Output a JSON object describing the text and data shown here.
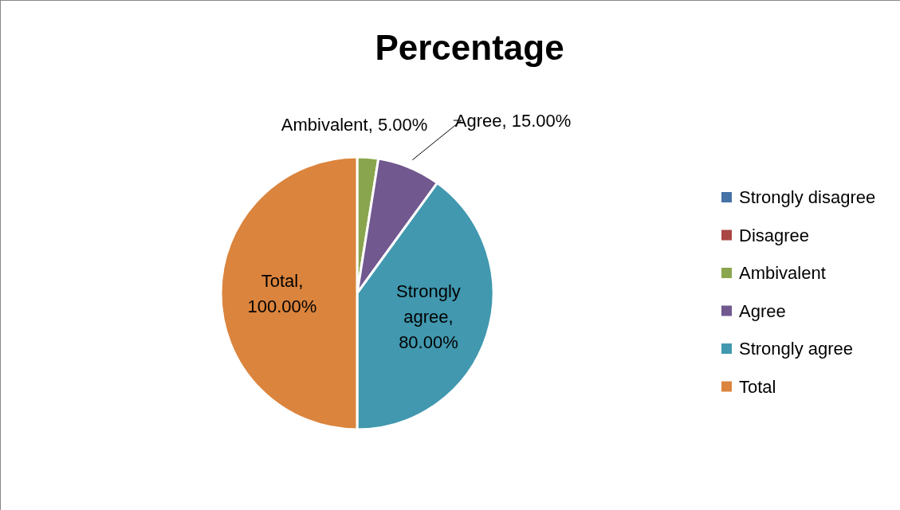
{
  "chart_data": {
    "type": "pie",
    "title": "Percentage",
    "categories": [
      "Strongly disagree",
      "Disagree",
      "Ambivalent",
      "Agree",
      "Strongly agree",
      "Total"
    ],
    "values": [
      0,
      0,
      5,
      15,
      80,
      100
    ],
    "colors": [
      "#4572a7",
      "#aa4643",
      "#89a54e",
      "#71588f",
      "#4198af",
      "#db843d"
    ],
    "value_labels": [
      null,
      null,
      "Ambivalent, 5.00%",
      "Agree, 15.00%",
      "Strongly agree, 80.00%",
      "Total, 100.00%"
    ],
    "legend": "right"
  }
}
